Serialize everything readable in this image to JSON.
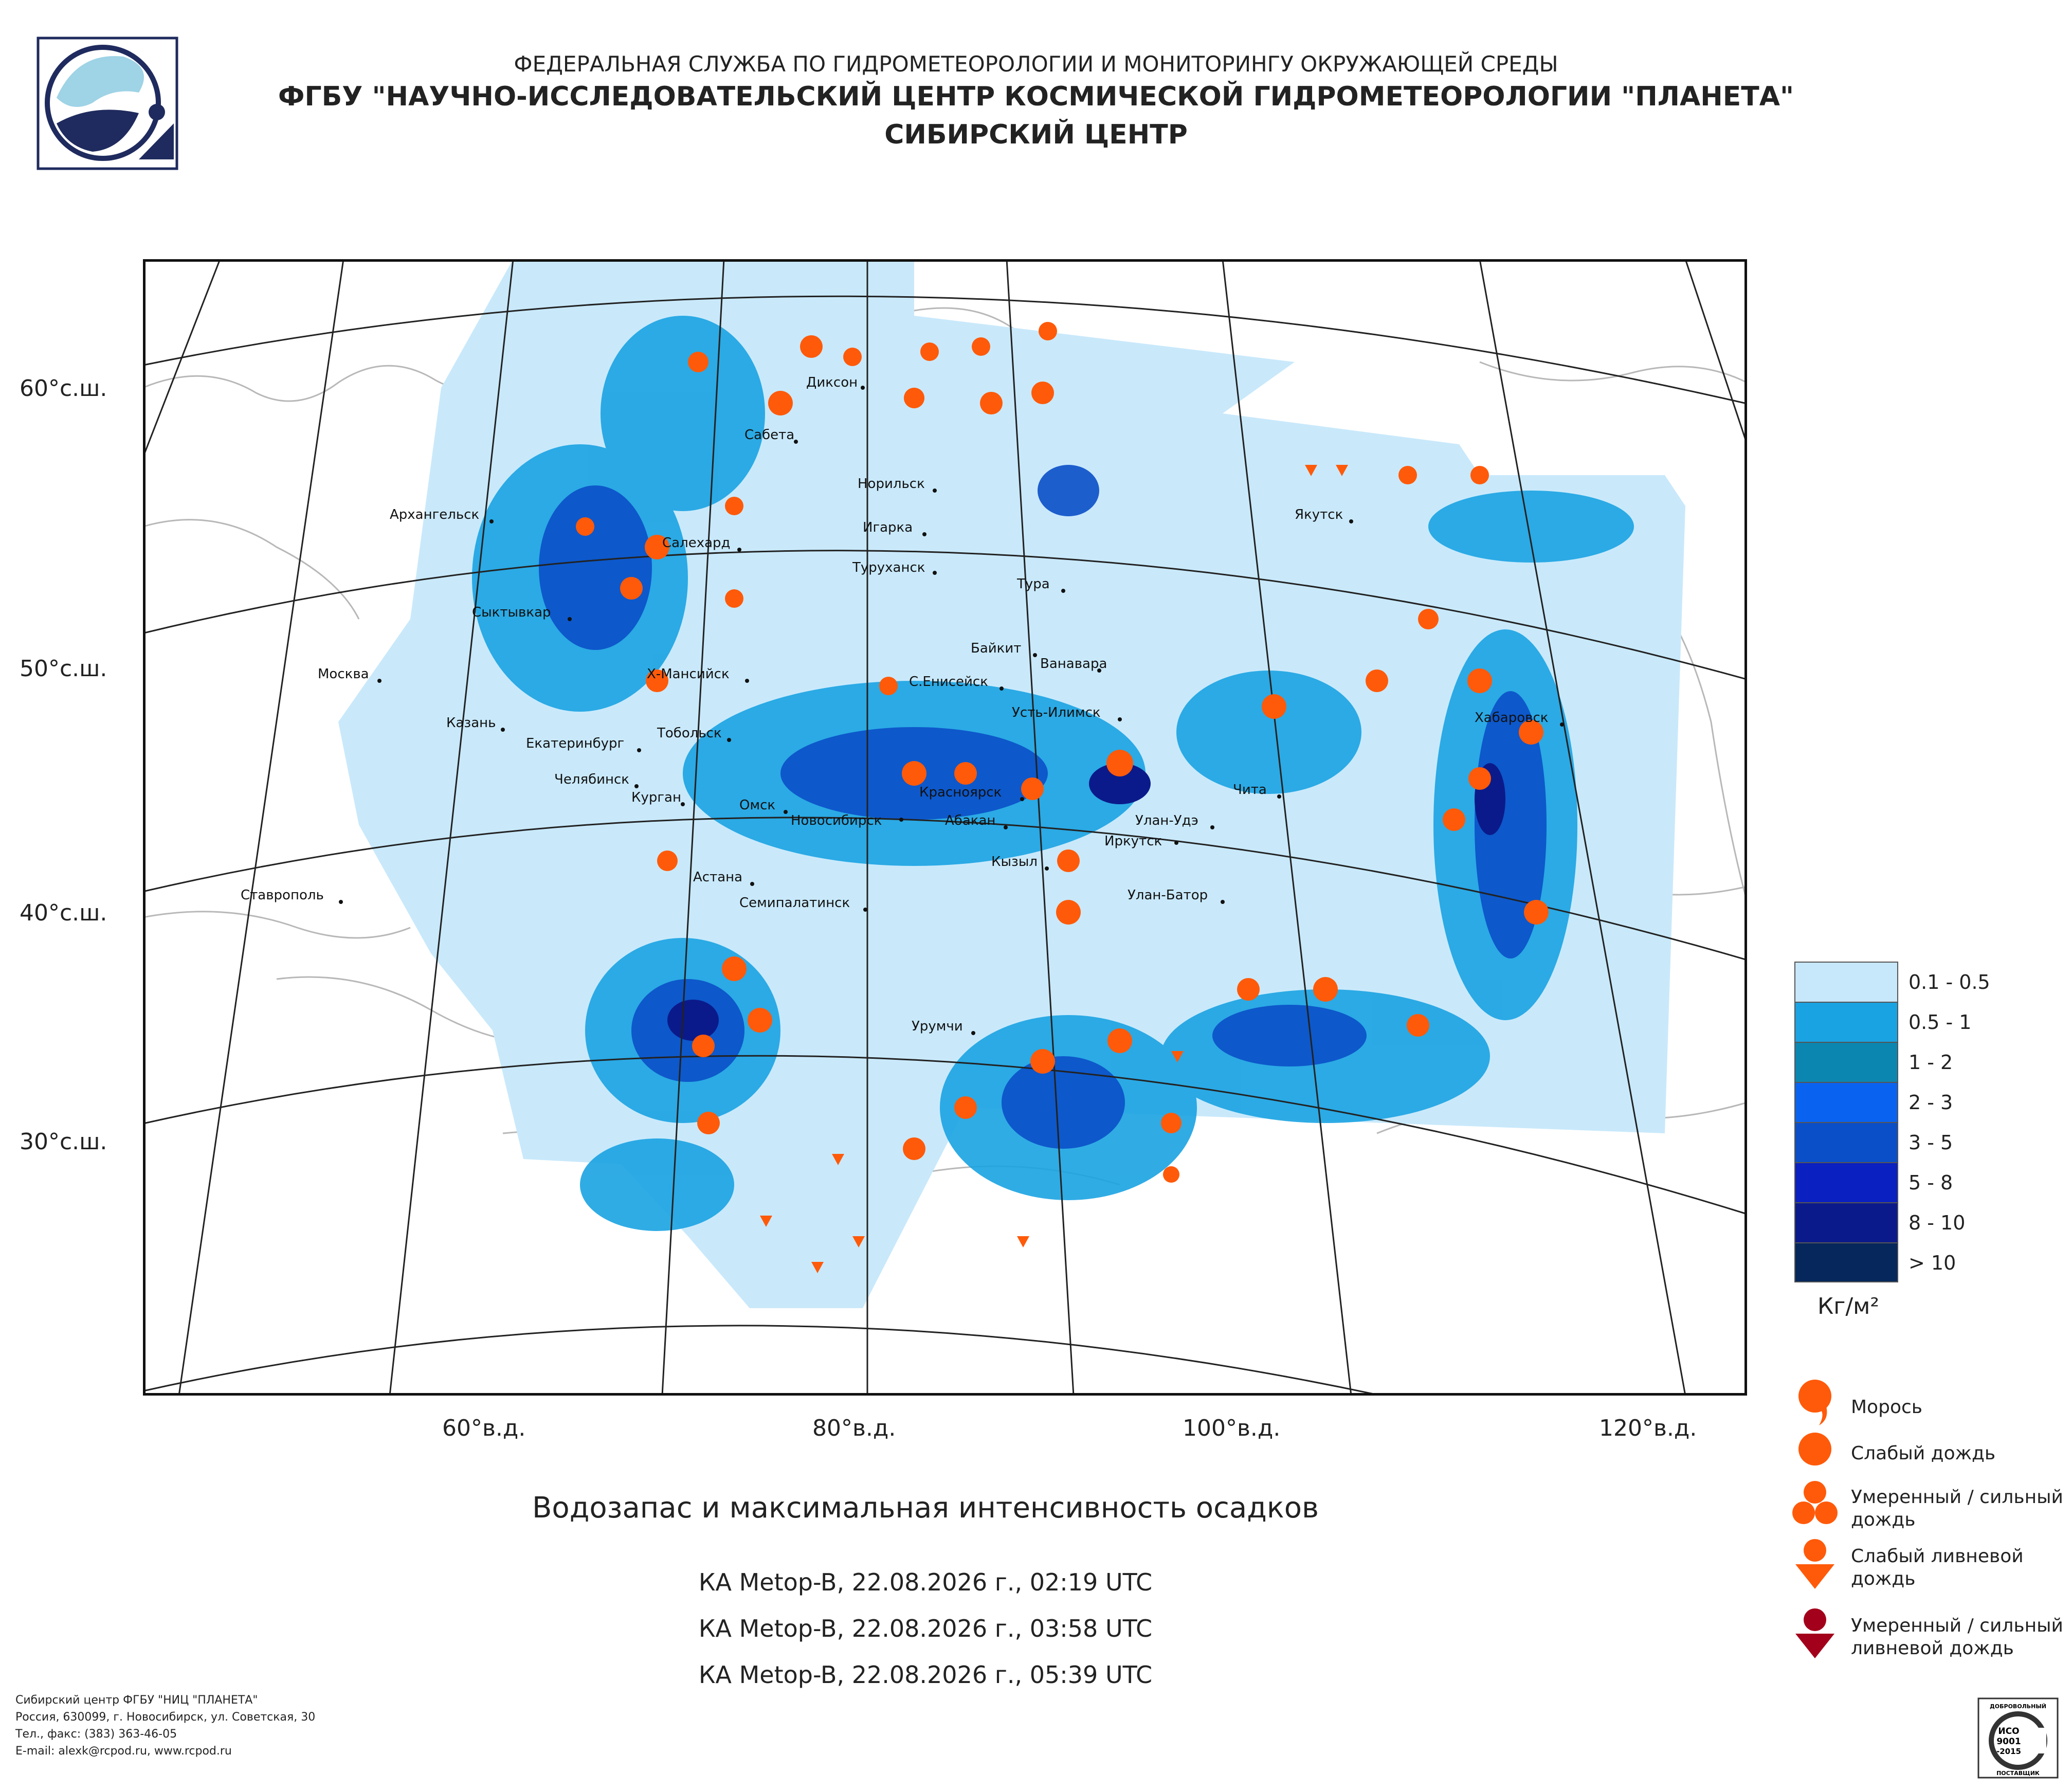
{
  "header": {
    "line1": "ФЕДЕРАЛЬНАЯ СЛУЖБА ПО ГИДРОМЕТЕОРОЛОГИИ И МОНИТОРИНГУ ОКРУЖАЮЩЕЙ СРЕДЫ",
    "line2": "ФГБУ \"НАУЧНО-ИССЛЕДОВАТЕЛЬСКИЙ ЦЕНТР КОСМИЧЕСКОЙ ГИДРОМЕТЕОРОЛОГИИ \"ПЛАНЕТА\"",
    "line3": "СИБИРСКИЙ ЦЕНТР"
  },
  "map": {
    "lat_labels": [
      "60°с.ш.",
      "50°с.ш.",
      "40°с.ш.",
      "30°с.ш."
    ],
    "lon_labels": [
      "60°в.д.",
      "80°в.д.",
      "100°в.д.",
      "120°в.д."
    ],
    "cities": [
      "Диксон",
      "Сабета",
      "Норильск",
      "Игарка",
      "Туруханск",
      "Тура",
      "Якутск",
      "Архангельск",
      "Салехард",
      "Сыктывкар",
      "Москва",
      "Х-Мансийск",
      "Байкит",
      "Ванавара",
      "С.Енисейск",
      "Усть-Илимск",
      "Хабаровск",
      "Казань",
      "Екатеринбург",
      "Тобольск",
      "Челябинск",
      "Курган",
      "Омск",
      "Новосибирск",
      "Красноярск",
      "Чита",
      "Абакан",
      "Улан-Удэ",
      "Иркутск",
      "Кызыл",
      "Астана",
      "Семипалатинск",
      "Улан-Батор",
      "Ставрополь",
      "Урумчи"
    ]
  },
  "colors": {
    "cloud_light": "#c9e9fb",
    "ocean_line": "#b0b0b0",
    "grid_line": "#222222",
    "precip_symbol": "#ff5a0a",
    "heavy_shower": "#a3001b"
  },
  "legend": {
    "water_ranges": [
      {
        "label": "0.1 - 0.5",
        "color": "#c7e7fb"
      },
      {
        "label": "0.5 - 1",
        "color": "#1aa3e2"
      },
      {
        "label": "1 - 2",
        "color": "#0b86b0"
      },
      {
        "label": "2 - 3",
        "color": "#0a63f0"
      },
      {
        "label": "3 - 5",
        "color": "#0a4fc8"
      },
      {
        "label": "5 - 8",
        "color": "#0b20c0"
      },
      {
        "label": "8 - 10",
        "color": "#0b1a8a"
      },
      {
        "label": "> 10",
        "color": "#06275c"
      }
    ],
    "unit": "Кг/м²",
    "symbols": [
      {
        "name": "drizzle",
        "label_lines": [
          "Морось"
        ]
      },
      {
        "name": "light-rain",
        "label_lines": [
          "Слабый дождь"
        ]
      },
      {
        "name": "moderate-rain",
        "label_lines": [
          "Умеренный / сильный",
          "дождь"
        ]
      },
      {
        "name": "light-shower",
        "label_lines": [
          "Слабый ливневой",
          "дождь"
        ]
      },
      {
        "name": "heavy-shower",
        "label_lines": [
          "Умеренный / сильный",
          "ливневой дождь"
        ]
      }
    ]
  },
  "caption": {
    "title": "Водозапас и максимальная интенсивность осадков",
    "passes": [
      "КА Metop-B, 22.08.2026 г., 02:19 UTC",
      "КА Metop-B, 22.08.2026 г., 03:58 UTC",
      "КА Metop-B, 22.08.2026 г., 05:39 UTC"
    ]
  },
  "footer": {
    "lines": [
      "Сибирский центр ФГБУ \"НИЦ \"ПЛАНЕТА\"",
      "Россия, 630099, г. Новосибирск, ул. Советская, 30",
      "Тел., факс: (383) 363-46-05",
      "E-mail: alexk@rcpod.ru, www.rcpod.ru"
    ],
    "iso_lines": [
      "ДОБРОВОЛЬНЫЙ",
      "ИСО",
      "9001",
      "-2015",
      "ПОСТАВЩИК"
    ]
  }
}
